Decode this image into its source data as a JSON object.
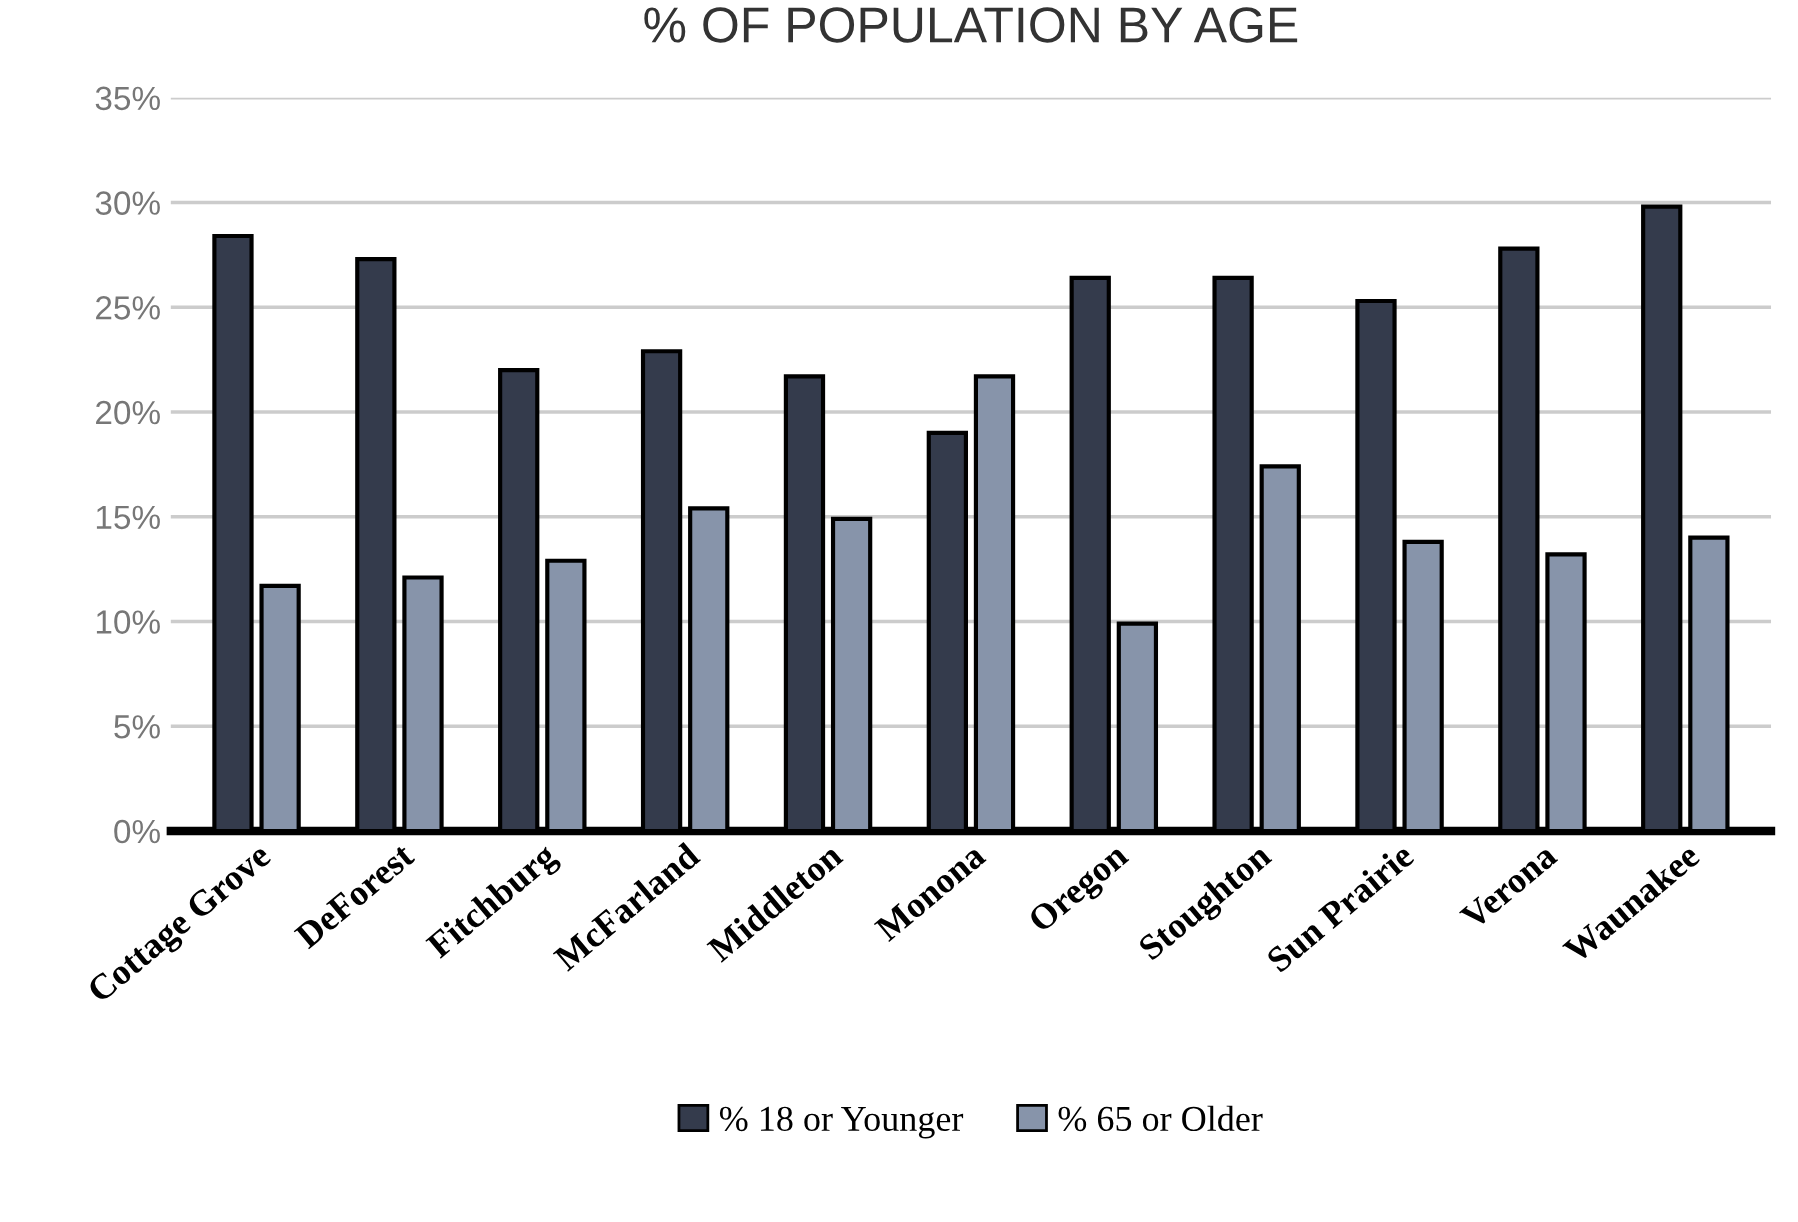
{
  "chart_data": {
    "type": "bar",
    "title": "% OF POPULATION BY AGE",
    "categories": [
      "Cottage Grove",
      "DeForest",
      "Fitchburg",
      "McFarland",
      "Middleton",
      "Monona",
      "Oregon",
      "Stoughton",
      "Sun Prairie",
      "Verona",
      "Waunakee"
    ],
    "series": [
      {
        "name": "% 18 or Younger",
        "color": "#343b4c",
        "values": [
          28.4,
          27.3,
          22.0,
          22.9,
          21.7,
          19.0,
          26.4,
          26.4,
          25.3,
          27.8,
          29.8
        ]
      },
      {
        "name": "% 65 or Older",
        "color": "#8794aa",
        "values": [
          11.7,
          12.1,
          12.9,
          15.4,
          14.9,
          21.7,
          9.9,
          17.4,
          13.8,
          13.2,
          14.0
        ]
      }
    ],
    "ylim": [
      0,
      35
    ],
    "yticks": [
      {
        "value": 0,
        "label": "0%"
      },
      {
        "value": 5,
        "label": "5%"
      },
      {
        "value": 10,
        "label": "10%"
      },
      {
        "value": 15,
        "label": "15%"
      },
      {
        "value": 20,
        "label": "20%"
      },
      {
        "value": 25,
        "label": "25%"
      },
      {
        "value": 30,
        "label": "30%"
      },
      {
        "value": 35,
        "label": "35%"
      }
    ],
    "grid": "y",
    "legend": "bottom"
  }
}
